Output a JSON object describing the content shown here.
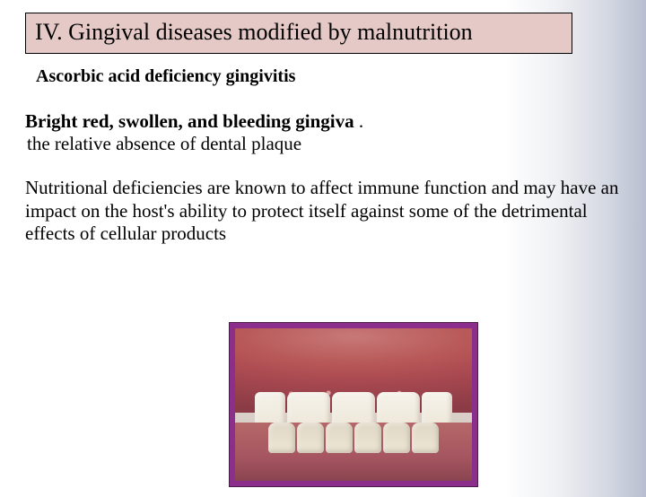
{
  "title": "IV. Gingival diseases modified by malnutrition",
  "subtitle": "Ascorbic acid deficiency gingivitis",
  "symptom_bold": "Bright red, swollen, and bleeding gingiva",
  "symptom_tail": " .",
  "symptom_line2": " the relative absence of dental plaque",
  "paragraph": "Nutritional deficiencies are known to affect immune function and may have an impact on the host's ability to protect itself against some of the detrimental effects of cellular products",
  "colors": {
    "title_bg": "#e5c9c7",
    "frame": "#8c2f8c",
    "gradient_end": "#b8becf"
  },
  "image": {
    "type": "clinical-photo",
    "description": "gingivitis-teeth-closeup"
  }
}
